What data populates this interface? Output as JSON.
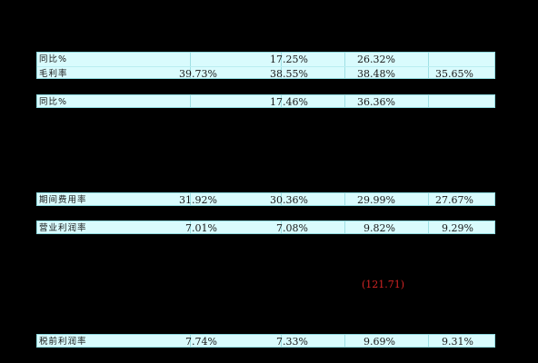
{
  "rows": {
    "gross_margin_block": {
      "yoy_label": "同比%",
      "yoy_values": [
        "",
        "17.25%",
        "26.32%",
        ""
      ],
      "label": "毛利率",
      "values": [
        "39.73%",
        "38.55%",
        "38.48%",
        "35.65%"
      ]
    },
    "yoy_second": {
      "label": "同比%",
      "values": [
        "",
        "17.46%",
        "36.36%",
        ""
      ]
    },
    "period_expense_rate": {
      "label": "期间费用率",
      "values": [
        "31.92%",
        "30.36%",
        "29.99%",
        "27.67%"
      ]
    },
    "operating_margin": {
      "label": "营业利润率",
      "values": [
        "7.01%",
        "7.08%",
        "9.82%",
        "9.29%"
      ]
    },
    "pretax_margin": {
      "label": "税前利润率",
      "values": [
        "7.74%",
        "7.33%",
        "9.69%",
        "9.31%"
      ]
    }
  },
  "notes": {
    "negative_value": "(121.71)"
  },
  "colors": {
    "row_background": "#d9fbfd",
    "page_background": "#000000",
    "negative_text": "#d22424"
  }
}
